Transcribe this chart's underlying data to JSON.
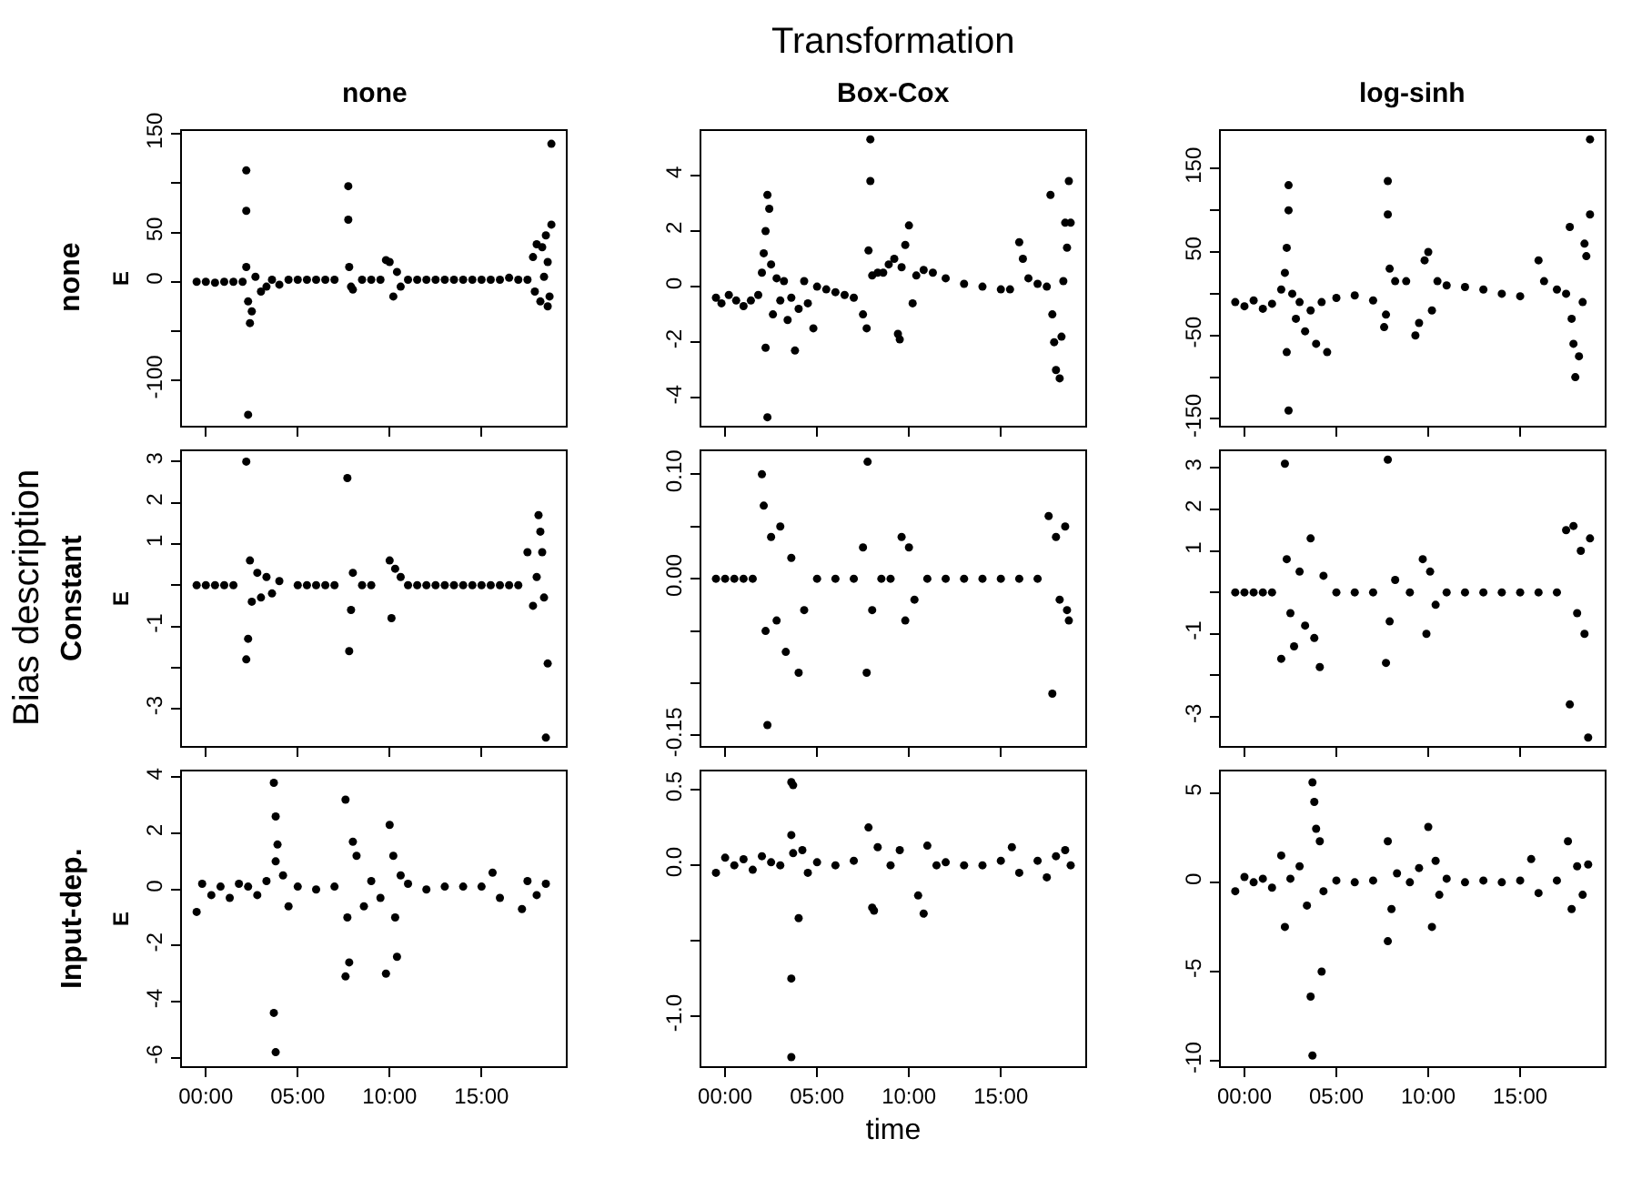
{
  "chart_data": [
    {
      "type": "scatter",
      "title": "none",
      "ylabel": "E",
      "annotations": [
        "none",
        "Transformation",
        "Bias description"
      ],
      "marker": "circle",
      "tick_labels": "y",
      "xlim": [
        -1.3,
        19.6
      ],
      "xticks": [
        {
          "value": 0,
          "label": null
        },
        {
          "value": 5,
          "label": null
        },
        {
          "value": 10,
          "label": null
        },
        {
          "value": 15,
          "label": null
        }
      ],
      "ylim": [
        -146,
        153
      ],
      "yticks": [
        {
          "value": -100,
          "label": "-100"
        },
        {
          "value": -50,
          "label": null
        },
        0,
        50,
        {
          "value": 100,
          "label": null
        },
        150
      ],
      "series": [
        {
          "color": "#000000",
          "x": [
            -0.5,
            0,
            0.5,
            1,
            1.5,
            2,
            2.2,
            2.2,
            2.2,
            2.3,
            2.3,
            2.4,
            2.5,
            2.7,
            3.0,
            3.3,
            3.6,
            4.0,
            4.5,
            5,
            5.5,
            6,
            6.5,
            7,
            7.75,
            7.75,
            7.8,
            7.9,
            8.0,
            8.5,
            9,
            9.5,
            9.8,
            10.0,
            10.2,
            10.4,
            10.6,
            11,
            11.5,
            12,
            12.5,
            13,
            13.5,
            14,
            14.5,
            15,
            15.5,
            16,
            16.5,
            17,
            17.5,
            17.8,
            17.9,
            18.0,
            18.2,
            18.3,
            18.4,
            18.5,
            18.6,
            18.6,
            18.7,
            18.8,
            18.8
          ],
          "values": [
            0,
            0,
            -1,
            0,
            0,
            0,
            113,
            72,
            15,
            -20,
            -135,
            -42,
            -30,
            5,
            -10,
            -5,
            2,
            -3,
            2,
            2,
            2,
            2,
            2,
            2,
            97,
            63,
            15,
            -5,
            -8,
            2,
            2,
            2,
            22,
            20,
            -15,
            10,
            -5,
            2,
            2,
            2,
            2,
            2,
            2,
            2,
            2,
            2,
            2,
            2,
            4,
            2,
            2,
            25,
            -10,
            38,
            -20,
            35,
            5,
            47,
            -25,
            20,
            -15,
            140,
            58
          ]
        }
      ]
    },
    {
      "type": "scatter",
      "title": "Box-Cox",
      "marker": "circle",
      "tick_labels": "y",
      "xlim": [
        -1.3,
        19.6
      ],
      "xticks": [
        {
          "value": 0,
          "label": null
        },
        {
          "value": 5,
          "label": null
        },
        {
          "value": 10,
          "label": null
        },
        {
          "value": 15,
          "label": null
        }
      ],
      "ylim": [
        -5.0,
        5.6
      ],
      "yticks": [
        -4,
        -2,
        0,
        2,
        4
      ],
      "series": [
        {
          "color": "#000000",
          "x": [
            -0.5,
            -0.2,
            0.2,
            0.6,
            1,
            1.4,
            1.8,
            2.0,
            2.1,
            2.2,
            2.3,
            2.4,
            2.5,
            2.2,
            2.3,
            2.6,
            2.8,
            3.0,
            3.2,
            3.4,
            3.6,
            3.8,
            4.0,
            4.3,
            4.5,
            4.8,
            5,
            5.5,
            6,
            6.5,
            7,
            7.5,
            7.7,
            7.8,
            7.9,
            7.9,
            8.0,
            8.3,
            8.6,
            8.9,
            9.2,
            9.4,
            9.5,
            9.6,
            9.8,
            10.0,
            10.2,
            10.4,
            10.8,
            11.3,
            12,
            13,
            14,
            15,
            15.5,
            16,
            16.2,
            16.5,
            17,
            17.5,
            17.7,
            17.8,
            17.9,
            18.0,
            18.2,
            18.3,
            18.4,
            18.5,
            18.6,
            18.7,
            18.8
          ],
          "values": [
            -0.4,
            -0.6,
            -0.3,
            -0.5,
            -0.7,
            -0.5,
            -0.3,
            0.5,
            1.2,
            2.0,
            3.3,
            2.8,
            0.8,
            -2.2,
            -4.7,
            -1.0,
            0.3,
            -0.5,
            0.2,
            -1.2,
            -0.4,
            -2.3,
            -0.8,
            0.2,
            -0.6,
            -1.5,
            0,
            -0.1,
            -0.2,
            -0.3,
            -0.4,
            -1.0,
            -1.5,
            1.3,
            3.8,
            5.3,
            0.4,
            0.5,
            0.5,
            0.8,
            1.0,
            -1.7,
            -1.9,
            0.7,
            1.5,
            2.2,
            -0.6,
            0.4,
            0.6,
            0.5,
            0.3,
            0.1,
            0,
            -0.1,
            -0.1,
            1.6,
            1.0,
            0.3,
            0.1,
            0.0,
            3.3,
            -1.0,
            -2.0,
            -3.0,
            -3.3,
            -1.8,
            0.2,
            2.3,
            1.4,
            3.8,
            2.3
          ]
        }
      ]
    },
    {
      "type": "scatter",
      "title": "log-sinh",
      "marker": "circle",
      "tick_labels": "y",
      "xlim": [
        -1.3,
        19.6
      ],
      "xticks": [
        {
          "value": 0,
          "label": null
        },
        {
          "value": 5,
          "label": null
        },
        {
          "value": 10,
          "label": null
        },
        {
          "value": 15,
          "label": null
        }
      ],
      "ylim": [
        -158,
        195
      ],
      "yticks": [
        {
          "value": -150,
          "label": "-150"
        },
        {
          "value": -100,
          "label": null
        },
        {
          "value": -50,
          "label": "-50"
        },
        {
          "value": 0,
          "label": null
        },
        50,
        {
          "value": 100,
          "label": null
        },
        150
      ],
      "series": [
        {
          "color": "#000000",
          "x": [
            -0.5,
            0,
            0.5,
            1,
            1.5,
            2,
            2.2,
            2.3,
            2.4,
            2.4,
            2.3,
            2.4,
            2.6,
            2.8,
            3,
            3.3,
            3.6,
            3.9,
            4.2,
            4.5,
            5,
            6,
            7,
            7.6,
            7.7,
            7.8,
            7.8,
            7.9,
            8.2,
            8.8,
            9.3,
            9.5,
            9.8,
            10.0,
            10.2,
            10.5,
            11,
            12,
            13,
            14,
            15,
            16,
            16.3,
            17,
            17.5,
            17.7,
            17.8,
            17.9,
            18.0,
            18.2,
            18.4,
            18.5,
            18.6,
            18.8,
            18.8
          ],
          "values": [
            -10,
            -15,
            -8,
            -18,
            -12,
            5,
            25,
            55,
            130,
            100,
            -70,
            -140,
            0,
            -30,
            -10,
            -45,
            -20,
            -60,
            -10,
            -70,
            -5,
            -2,
            -8,
            -40,
            -25,
            135,
            95,
            30,
            15,
            15,
            -50,
            -35,
            40,
            50,
            -20,
            15,
            10,
            8,
            5,
            0,
            -3,
            40,
            15,
            5,
            0,
            80,
            -30,
            -60,
            -100,
            -75,
            -10,
            60,
            45,
            185,
            95
          ]
        }
      ]
    },
    {
      "type": "scatter",
      "ylabel": "E",
      "annotations": [
        "Constant"
      ],
      "marker": "circle",
      "tick_labels": "y",
      "xlim": [
        -1.3,
        19.6
      ],
      "xticks": [
        {
          "value": 0,
          "label": null
        },
        {
          "value": 5,
          "label": null
        },
        {
          "value": 10,
          "label": null
        },
        {
          "value": 15,
          "label": null
        }
      ],
      "ylim": [
        -3.9,
        3.25
      ],
      "yticks": [
        -3,
        {
          "value": -2,
          "label": null
        },
        -1,
        {
          "value": 0,
          "label": null
        },
        1,
        2,
        3
      ],
      "series": [
        {
          "color": "#000000",
          "x": [
            -0.5,
            0,
            0.5,
            1,
            1.5,
            2.2,
            2.2,
            2.3,
            2.4,
            2.5,
            2.8,
            3.0,
            3.3,
            3.6,
            4,
            5,
            5.5,
            6,
            6.5,
            7,
            7.7,
            7.8,
            7.9,
            8.0,
            8.5,
            9,
            10.0,
            10.1,
            10.3,
            10.6,
            11,
            11.5,
            12,
            12.5,
            13,
            13.5,
            14,
            14.5,
            15,
            15.5,
            16,
            16.5,
            17,
            17.5,
            17.8,
            18.0,
            18.1,
            18.2,
            18.3,
            18.4,
            18.5,
            18.6
          ],
          "values": [
            0,
            0,
            0,
            0,
            0,
            3.0,
            -1.8,
            -1.3,
            0.6,
            -0.4,
            0.3,
            -0.3,
            0.2,
            -0.2,
            0.1,
            0,
            0,
            0,
            0,
            0,
            2.6,
            -1.6,
            -0.6,
            0.3,
            0,
            0,
            0.6,
            -0.8,
            0.4,
            0.2,
            0,
            0,
            0,
            0,
            0,
            0,
            0,
            0,
            0,
            0,
            0,
            0,
            0,
            0.8,
            -0.5,
            0.2,
            1.7,
            1.3,
            0.8,
            -0.3,
            -3.7,
            -1.9
          ]
        }
      ]
    },
    {
      "type": "scatter",
      "marker": "circle",
      "tick_labels": "y",
      "xlim": [
        -1.3,
        19.6
      ],
      "xticks": [
        {
          "value": 0,
          "label": null
        },
        {
          "value": 5,
          "label": null
        },
        {
          "value": 10,
          "label": null
        },
        {
          "value": 15,
          "label": null
        }
      ],
      "ylim": [
        -0.16,
        0.122
      ],
      "yticks": [
        {
          "value": -0.15,
          "label": "-0.15"
        },
        {
          "value": -0.1,
          "label": null
        },
        {
          "value": -0.05,
          "label": null
        },
        {
          "value": 0,
          "label": "0.00"
        },
        {
          "value": 0.05,
          "label": null
        },
        {
          "value": 0.1,
          "label": "0.10"
        }
      ],
      "series": [
        {
          "color": "#000000",
          "x": [
            -0.5,
            0,
            0.5,
            1,
            1.5,
            2.0,
            2.1,
            2.2,
            2.3,
            2.5,
            2.8,
            3.0,
            3.3,
            3.6,
            4.0,
            4.3,
            5,
            6,
            7,
            7.5,
            7.7,
            7.75,
            8.0,
            8.5,
            9,
            9.6,
            9.8,
            10.0,
            10.3,
            11,
            12,
            13,
            14,
            15,
            16,
            17,
            17.6,
            17.8,
            18.0,
            18.2,
            18.5,
            18.6,
            18.7
          ],
          "values": [
            0,
            0,
            0,
            0,
            0,
            0.1,
            0.07,
            -0.05,
            -0.14,
            0.04,
            -0.04,
            0.05,
            -0.07,
            0.02,
            -0.09,
            -0.03,
            0,
            0,
            0,
            0.03,
            -0.09,
            0.112,
            -0.03,
            0,
            0,
            0.04,
            -0.04,
            0.03,
            -0.02,
            0,
            0,
            0,
            0,
            0,
            0,
            0,
            0.06,
            -0.11,
            0.04,
            -0.02,
            0.05,
            -0.03,
            -0.04
          ]
        }
      ]
    },
    {
      "type": "scatter",
      "marker": "circle",
      "tick_labels": "y",
      "xlim": [
        -1.3,
        19.6
      ],
      "xticks": [
        {
          "value": 0,
          "label": null
        },
        {
          "value": 5,
          "label": null
        },
        {
          "value": 10,
          "label": null
        },
        {
          "value": 15,
          "label": null
        }
      ],
      "ylim": [
        -3.7,
        3.4
      ],
      "yticks": [
        -3,
        {
          "value": -2,
          "label": null
        },
        -1,
        {
          "value": 0,
          "label": null
        },
        1,
        2,
        3
      ],
      "series": [
        {
          "color": "#000000",
          "x": [
            -0.5,
            0,
            0.5,
            1,
            1.5,
            2.0,
            2.2,
            2.3,
            2.5,
            2.7,
            3.0,
            3.3,
            3.6,
            3.8,
            4.1,
            4.3,
            5,
            6,
            7,
            7.7,
            7.8,
            7.9,
            8.2,
            9,
            9.7,
            9.9,
            10.1,
            10.4,
            11,
            12,
            13,
            14,
            15,
            16,
            17,
            17.5,
            17.7,
            17.9,
            18.1,
            18.3,
            18.5,
            18.7,
            18.8
          ],
          "values": [
            0,
            0,
            0,
            0,
            0,
            -1.6,
            3.1,
            0.8,
            -0.5,
            -1.3,
            0.5,
            -0.8,
            1.3,
            -1.1,
            -1.8,
            0.4,
            0,
            0,
            0,
            -1.7,
            3.2,
            -0.7,
            0.3,
            0,
            0.8,
            -1.0,
            0.5,
            -0.3,
            0,
            0,
            0,
            0,
            0,
            0,
            0,
            1.5,
            -2.7,
            1.6,
            -0.5,
            1.0,
            -1.0,
            -3.5,
            1.3
          ]
        }
      ]
    },
    {
      "type": "scatter",
      "ylabel": "E",
      "annotations": [
        "Input-dep."
      ],
      "marker": "circle",
      "xlim": [
        -1.3,
        19.6
      ],
      "xticks": [
        {
          "value": 0,
          "label": "00:00"
        },
        {
          "value": 5,
          "label": "05:00"
        },
        {
          "value": 10,
          "label": "10:00"
        },
        {
          "value": 15,
          "label": "15:00"
        }
      ],
      "ylim": [
        -6.3,
        4.2
      ],
      "yticks": [
        -6,
        -4,
        -2,
        0,
        2,
        4
      ],
      "series": [
        {
          "color": "#000000",
          "x": [
            -0.5,
            -0.2,
            0.3,
            0.8,
            1.3,
            1.8,
            2.3,
            2.8,
            3.3,
            3.7,
            3.8,
            3.9,
            3.8,
            3.7,
            3.8,
            4.2,
            4.5,
            5,
            6,
            7,
            7.6,
            7.7,
            7.8,
            7.6,
            8.0,
            8.2,
            8.6,
            9.0,
            9.5,
            10.0,
            9.8,
            10.2,
            10.4,
            10.3,
            10.6,
            11,
            12,
            13,
            14,
            15,
            15.6,
            16,
            17.2,
            17.5,
            18,
            18.5
          ],
          "values": [
            -0.8,
            0.2,
            -0.2,
            0.1,
            -0.3,
            0.2,
            0.1,
            -0.2,
            0.3,
            3.8,
            2.6,
            1.6,
            1.0,
            -4.4,
            -5.8,
            0.5,
            -0.6,
            0.1,
            0,
            0.1,
            3.2,
            -1.0,
            -2.6,
            -3.1,
            1.7,
            1.2,
            -0.6,
            0.3,
            -0.3,
            2.3,
            -3.0,
            1.2,
            -2.4,
            -1.0,
            0.5,
            0.2,
            0,
            0.1,
            0.1,
            0.1,
            0.6,
            -0.3,
            -0.7,
            0.3,
            -0.2,
            0.2
          ]
        }
      ]
    },
    {
      "type": "scatter",
      "xlabel": "time",
      "marker": "circle",
      "xlim": [
        -1.3,
        19.6
      ],
      "xticks": [
        {
          "value": 0,
          "label": "00:00"
        },
        {
          "value": 5,
          "label": "05:00"
        },
        {
          "value": 10,
          "label": "10:00"
        },
        {
          "value": 15,
          "label": "15:00"
        }
      ],
      "ylim": [
        -1.33,
        0.62
      ],
      "yticks": [
        {
          "value": -1.0,
          "label": "-1.0"
        },
        {
          "value": -0.5,
          "label": null
        },
        {
          "value": 0,
          "label": "0.0"
        },
        {
          "value": 0.5,
          "label": "0.5"
        }
      ],
      "series": [
        {
          "color": "#000000",
          "x": [
            -0.5,
            0,
            0.5,
            1,
            1.5,
            2,
            2.5,
            3.0,
            3.6,
            3.7,
            3.6,
            3.7,
            3.6,
            3.6,
            4.0,
            4.2,
            4.5,
            5,
            6,
            7,
            7.8,
            8.0,
            8.1,
            8.3,
            9,
            9.5,
            10.5,
            10.8,
            11,
            11.5,
            12,
            13,
            14,
            15,
            15.6,
            16,
            17,
            17.5,
            18,
            18.5,
            18.8
          ],
          "values": [
            -0.05,
            0.05,
            0.0,
            0.04,
            -0.03,
            0.06,
            0.02,
            0.0,
            0.55,
            0.53,
            0.2,
            0.08,
            -0.75,
            -1.27,
            -0.35,
            0.1,
            -0.05,
            0.02,
            0.0,
            0.03,
            0.25,
            -0.28,
            -0.3,
            0.12,
            0.0,
            0.1,
            -0.2,
            -0.32,
            0.13,
            0.0,
            0.02,
            0.0,
            0.0,
            0.03,
            0.12,
            -0.05,
            0.03,
            -0.08,
            0.06,
            0.1,
            0.0
          ]
        }
      ]
    },
    {
      "type": "scatter",
      "marker": "circle",
      "xlim": [
        -1.3,
        19.6
      ],
      "xticks": [
        {
          "value": 0,
          "label": "00:00"
        },
        {
          "value": 5,
          "label": "05:00"
        },
        {
          "value": 10,
          "label": "10:00"
        },
        {
          "value": 15,
          "label": "15:00"
        }
      ],
      "ylim": [
        -10.3,
        6.2
      ],
      "yticks": [
        -10,
        -5,
        0,
        5
      ],
      "series": [
        {
          "color": "#000000",
          "x": [
            -0.5,
            0,
            0.5,
            1,
            1.5,
            2,
            2.2,
            2.5,
            3,
            3.4,
            3.7,
            3.8,
            3.9,
            3.6,
            3.7,
            4.2,
            4.1,
            4.3,
            5,
            6,
            7,
            7.8,
            7.8,
            8.0,
            8.3,
            9,
            9.5,
            10.0,
            10.2,
            10.4,
            10.6,
            11,
            12,
            13,
            14,
            15,
            15.6,
            16,
            17,
            17.6,
            17.8,
            18.1,
            18.4,
            18.7
          ],
          "values": [
            -0.5,
            0.3,
            0.0,
            0.2,
            -0.3,
            1.5,
            -2.5,
            0.2,
            0.9,
            -1.3,
            5.6,
            4.5,
            3.0,
            -6.4,
            -9.7,
            -5.0,
            2.3,
            -0.5,
            0.1,
            0,
            0.1,
            2.3,
            -3.3,
            -1.5,
            0.5,
            0.0,
            0.8,
            3.1,
            -2.5,
            1.2,
            -0.7,
            0.2,
            0,
            0.1,
            0,
            0.1,
            1.3,
            -0.6,
            0.1,
            2.3,
            -1.5,
            0.9,
            -0.7,
            1.0
          ]
        }
      ]
    }
  ]
}
